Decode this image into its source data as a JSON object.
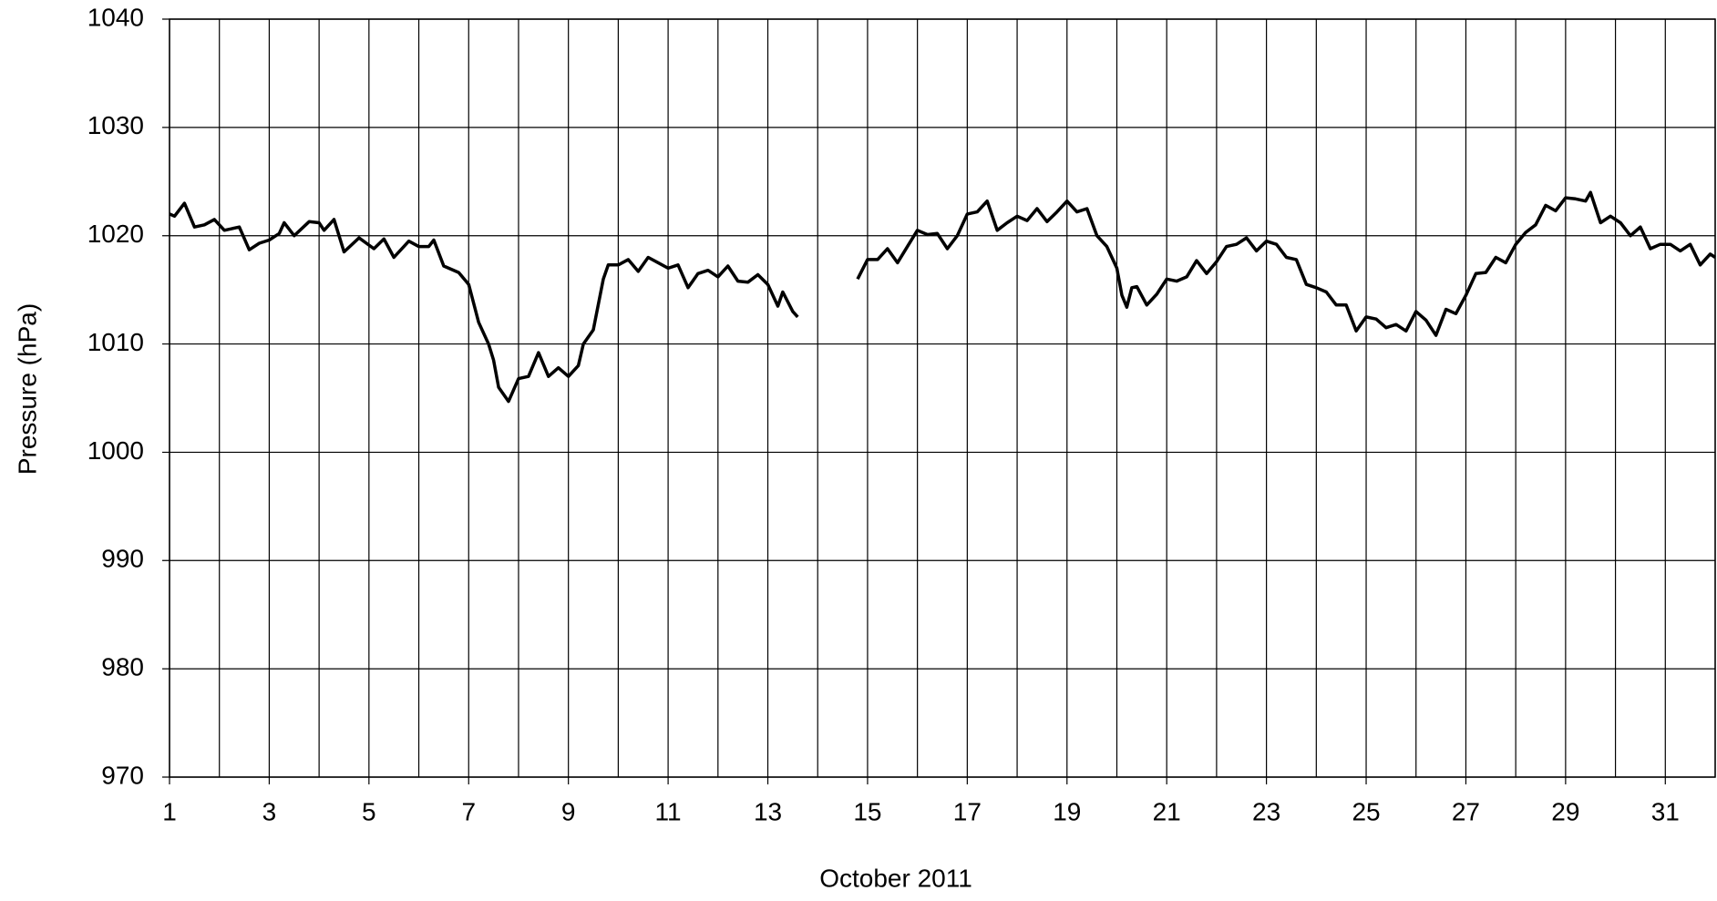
{
  "chart_data": {
    "type": "line",
    "xlabel": "October 2011",
    "ylabel": "Pressure (hPa)",
    "xlim": [
      1,
      32
    ],
    "ylim": [
      970,
      1040
    ],
    "xticks": [
      1,
      3,
      5,
      7,
      9,
      11,
      13,
      15,
      17,
      19,
      21,
      23,
      25,
      27,
      29,
      31
    ],
    "x_grid": [
      1,
      2,
      3,
      4,
      5,
      6,
      7,
      8,
      9,
      10,
      11,
      12,
      13,
      14,
      15,
      16,
      17,
      18,
      19,
      20,
      21,
      22,
      23,
      24,
      25,
      26,
      27,
      28,
      29,
      30,
      31,
      32
    ],
    "yticks": [
      970,
      980,
      990,
      1000,
      1010,
      1020,
      1030,
      1040
    ],
    "grid": true,
    "x": [
      1.0,
      1.1,
      1.3,
      1.5,
      1.7,
      1.9,
      2.1,
      2.4,
      2.6,
      2.8,
      3.0,
      3.2,
      3.3,
      3.5,
      3.8,
      4.0,
      4.1,
      4.3,
      4.5,
      4.8,
      5.1,
      5.3,
      5.5,
      5.8,
      6.0,
      6.2,
      6.3,
      6.5,
      6.8,
      7.0,
      7.2,
      7.4,
      7.5,
      7.6,
      7.8,
      8.0,
      8.2,
      8.4,
      8.6,
      8.8,
      9.0,
      9.2,
      9.3,
      9.5,
      9.7,
      9.8,
      10.0,
      10.2,
      10.4,
      10.6,
      10.8,
      11.0,
      11.2,
      11.4,
      11.6,
      11.8,
      12.0,
      12.2,
      12.4,
      12.6,
      12.8,
      13.0,
      13.2,
      13.3,
      13.5,
      13.6,
      14.2,
      14.8,
      15.0,
      15.2,
      15.4,
      15.6,
      15.8,
      16.0,
      16.2,
      16.4,
      16.6,
      16.8,
      17.0,
      17.2,
      17.4,
      17.6,
      17.8,
      18.0,
      18.2,
      18.4,
      18.6,
      18.8,
      19.0,
      19.2,
      19.4,
      19.6,
      19.8,
      20.0,
      20.1,
      20.2,
      20.3,
      20.4,
      20.6,
      20.8,
      21.0,
      21.2,
      21.4,
      21.6,
      21.8,
      22.0,
      22.2,
      22.4,
      22.6,
      22.8,
      23.0,
      23.2,
      23.4,
      23.6,
      23.8,
      24.0,
      24.2,
      24.4,
      24.6,
      24.8,
      25.0,
      25.2,
      25.4,
      25.6,
      25.8,
      26.0,
      26.2,
      26.4,
      26.6,
      26.8,
      27.0,
      27.2,
      27.4,
      27.6,
      27.8,
      28.0,
      28.2,
      28.4,
      28.6,
      28.8,
      29.0,
      29.2,
      29.4,
      29.5,
      29.7,
      29.9,
      30.1,
      30.3,
      30.5,
      30.7,
      30.9,
      31.1,
      31.3,
      31.5,
      31.7,
      31.9,
      32.0
    ],
    "series": [
      {
        "name": "Pressure",
        "color": "#000000",
        "values": [
          1022,
          1021.8,
          1023,
          1020.8,
          1021,
          1021.5,
          1020.5,
          1020.8,
          1018.7,
          1019.3,
          1019.6,
          1020.2,
          1021.2,
          1020,
          1021.3,
          1021.2,
          1020.5,
          1021.5,
          1018.5,
          1019.8,
          1018.8,
          1019.7,
          1018,
          1019.5,
          1019,
          1019,
          1019.6,
          1017.2,
          1016.6,
          1015.5,
          1012,
          1010,
          1008.5,
          1006,
          1004.7,
          1006.8,
          1007,
          1009.2,
          1007,
          1007.8,
          1007,
          1008,
          1010,
          1011.3,
          1016,
          1017.3,
          1017.3,
          1017.8,
          1016.7,
          1018,
          1017.5,
          1017,
          1017.3,
          1015.2,
          1016.5,
          1016.8,
          1016.2,
          1017.2,
          1015.8,
          1015.7,
          1016.4,
          1015.5,
          1013.5,
          1014.8,
          1013,
          1012.5,
          null,
          1016,
          1017.8,
          1017.8,
          1018.8,
          1017.5,
          1019,
          1020.5,
          1020.1,
          1020.2,
          1018.8,
          1020,
          1022,
          1022.2,
          1023.2,
          1020.5,
          1021.2,
          1021.8,
          1021.4,
          1022.5,
          1021.3,
          1022.2,
          1023.2,
          1022.2,
          1022.5,
          1020,
          1019,
          1017,
          1014.5,
          1013.4,
          1015.2,
          1015.3,
          1013.6,
          1014.6,
          1016,
          1015.8,
          1016.2,
          1017.7,
          1016.5,
          1017.6,
          1019,
          1019.2,
          1019.8,
          1018.6,
          1019.5,
          1019.2,
          1018,
          1017.8,
          1015.5,
          1015.2,
          1014.8,
          1013.6,
          1013.6,
          1011.2,
          1012.5,
          1012.3,
          1011.5,
          1011.8,
          1011.2,
          1013,
          1012.2,
          1010.8,
          1013.2,
          1012.8,
          1014.5,
          1016.5,
          1016.6,
          1018,
          1017.5,
          1019.2,
          1020.3,
          1021,
          1022.8,
          1022.3,
          1023.5,
          1023.4,
          1023.2,
          1024,
          1021.2,
          1021.8,
          1021.2,
          1020,
          1020.8,
          1018.8,
          1019.2,
          1019.2,
          1018.6,
          1019.2,
          1017.3,
          1018.3,
          1018
        ]
      }
    ]
  }
}
